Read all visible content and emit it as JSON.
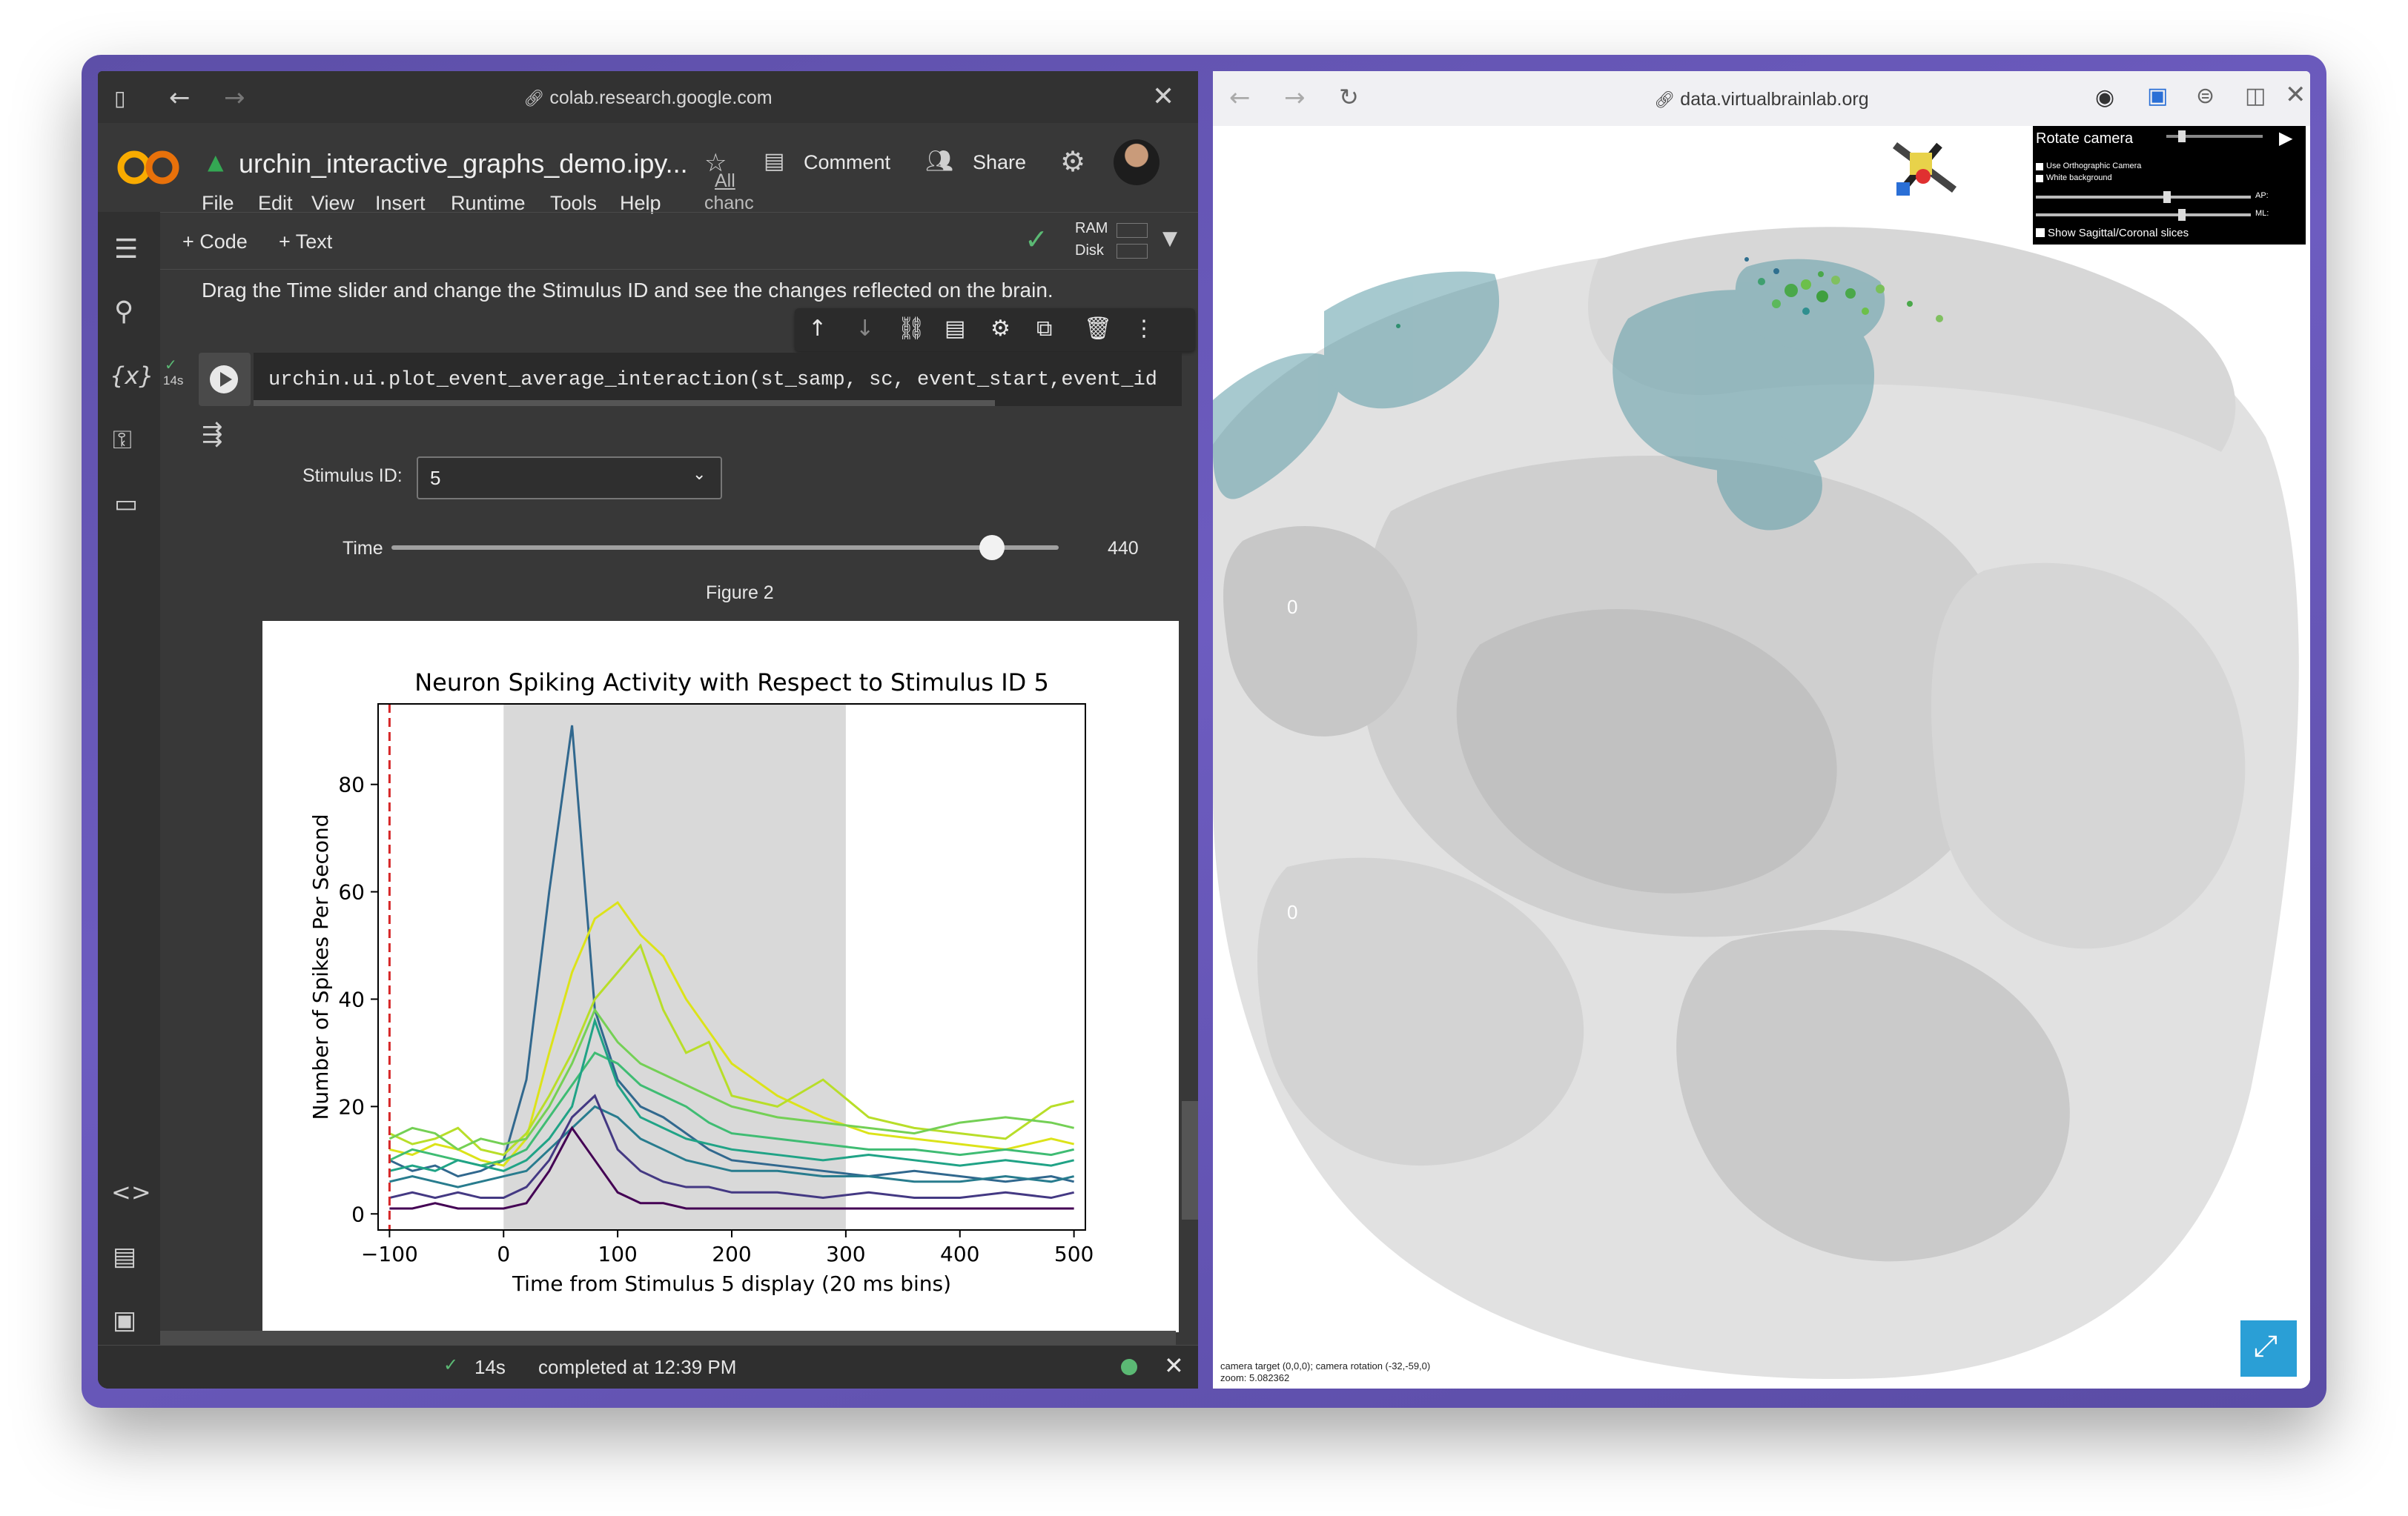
{
  "left_browser": {
    "url": "colab.research.google.com",
    "notebook": {
      "title": "urchin_interactive_graphs_demo.ipy...",
      "all_changes": "All",
      "all_changes2": "chanc",
      "menu": [
        "File",
        "Edit",
        "View",
        "Insert",
        "Runtime",
        "Tools",
        "Help"
      ],
      "comment": "Comment",
      "share": "Share",
      "add_code": "+ Code",
      "add_text": "+ Text",
      "ram": "RAM",
      "disk": "Disk"
    },
    "description": "Drag the Time slider and change the Stimulus ID and see the changes reflected on the brain.",
    "cell": {
      "exec_time": "14s",
      "code": "urchin.ui.plot_event_average_interaction(st_samp, sc, event_start,event_id"
    },
    "widgets": {
      "stimulus_label": "Stimulus ID:",
      "stimulus_value": "5",
      "time_label": "Time",
      "time_value": "440",
      "time_fraction": 0.9,
      "figure_label": "Figure 2"
    },
    "status": {
      "time": "14s",
      "text": "completed at 12:39 PM"
    }
  },
  "chart_data": {
    "type": "line",
    "title": "Neuron Spiking Activity with Respect to Stimulus ID 5",
    "xlabel": "Time from Stimulus 5 display (20 ms bins)",
    "ylabel": "Number of Spikes Per Second",
    "xlim": [
      -110,
      510
    ],
    "ylim": [
      -3,
      95
    ],
    "xticks": [
      -100,
      0,
      100,
      200,
      300,
      400,
      500
    ],
    "yticks": [
      0,
      20,
      40,
      60,
      80
    ],
    "stimulus_line_x": -100,
    "shaded_region": [
      0,
      300
    ],
    "colormap": "viridis",
    "series": [
      {
        "color": "#31688e",
        "x": [
          -100,
          -80,
          -60,
          -40,
          -20,
          0,
          20,
          40,
          60,
          80,
          100,
          120,
          140,
          160,
          180,
          200,
          240,
          280,
          320,
          360,
          400,
          440,
          480,
          500
        ],
        "values": [
          10,
          8,
          9,
          7,
          8,
          10,
          25,
          60,
          91,
          38,
          25,
          20,
          18,
          15,
          12,
          10,
          9,
          8,
          7,
          8,
          7,
          6,
          7,
          6
        ]
      },
      {
        "color": "#dce319",
        "x": [
          -100,
          -80,
          -60,
          -40,
          -20,
          0,
          20,
          40,
          60,
          80,
          100,
          120,
          140,
          160,
          180,
          200,
          240,
          280,
          320,
          360,
          400,
          440,
          480,
          500
        ],
        "values": [
          12,
          11,
          13,
          12,
          10,
          9,
          14,
          30,
          45,
          55,
          58,
          52,
          48,
          40,
          34,
          28,
          22,
          18,
          15,
          14,
          13,
          12,
          14,
          13
        ]
      },
      {
        "color": "#b8de29",
        "x": [
          -100,
          -80,
          -60,
          -40,
          -20,
          0,
          20,
          40,
          60,
          80,
          100,
          120,
          140,
          160,
          180,
          200,
          240,
          280,
          320,
          360,
          400,
          440,
          480,
          500
        ],
        "values": [
          15,
          13,
          14,
          16,
          12,
          11,
          15,
          22,
          30,
          40,
          45,
          50,
          38,
          30,
          32,
          22,
          20,
          25,
          18,
          16,
          15,
          14,
          20,
          21
        ]
      },
      {
        "color": "#74d055",
        "x": [
          -100,
          -80,
          -60,
          -40,
          -20,
          0,
          20,
          40,
          60,
          80,
          100,
          120,
          140,
          160,
          180,
          200,
          240,
          280,
          320,
          360,
          400,
          440,
          480,
          500
        ],
        "values": [
          14,
          16,
          15,
          12,
          14,
          13,
          14,
          20,
          28,
          38,
          32,
          28,
          26,
          24,
          22,
          20,
          18,
          17,
          16,
          15,
          17,
          18,
          17,
          16
        ]
      },
      {
        "color": "#3fbc73",
        "x": [
          -100,
          -80,
          -60,
          -40,
          -20,
          0,
          20,
          40,
          60,
          80,
          100,
          120,
          140,
          160,
          180,
          200,
          240,
          280,
          320,
          360,
          400,
          440,
          480,
          500
        ],
        "values": [
          10,
          12,
          11,
          10,
          9,
          10,
          12,
          18,
          24,
          30,
          28,
          24,
          22,
          20,
          17,
          15,
          14,
          13,
          12,
          12,
          11,
          12,
          11,
          12
        ]
      },
      {
        "color": "#20a386",
        "x": [
          -100,
          -80,
          -60,
          -40,
          -20,
          0,
          20,
          40,
          60,
          80,
          100,
          120,
          140,
          160,
          180,
          200,
          240,
          280,
          320,
          360,
          400,
          440,
          480,
          500
        ],
        "values": [
          8,
          9,
          8,
          10,
          9,
          8,
          10,
          14,
          20,
          36,
          24,
          18,
          16,
          14,
          13,
          12,
          11,
          10,
          11,
          10,
          9,
          10,
          9,
          10
        ]
      },
      {
        "color": "#287c8e",
        "x": [
          -100,
          -80,
          -60,
          -40,
          -20,
          0,
          20,
          40,
          60,
          80,
          100,
          120,
          140,
          160,
          180,
          200,
          240,
          280,
          320,
          360,
          400,
          440,
          480,
          500
        ],
        "values": [
          6,
          7,
          6,
          5,
          6,
          7,
          8,
          12,
          16,
          20,
          18,
          14,
          12,
          10,
          9,
          8,
          8,
          7,
          7,
          6,
          6,
          7,
          6,
          7
        ]
      },
      {
        "color": "#443983",
        "x": [
          -100,
          -80,
          -60,
          -40,
          -20,
          0,
          20,
          40,
          60,
          80,
          100,
          120,
          140,
          160,
          180,
          200,
          240,
          280,
          320,
          360,
          400,
          440,
          480,
          500
        ],
        "values": [
          3,
          4,
          3,
          4,
          3,
          3,
          5,
          10,
          18,
          22,
          12,
          8,
          6,
          5,
          5,
          4,
          4,
          3,
          4,
          3,
          3,
          4,
          3,
          4
        ]
      },
      {
        "color": "#440154",
        "x": [
          -100,
          -80,
          -60,
          -40,
          -20,
          0,
          20,
          40,
          60,
          80,
          100,
          120,
          140,
          160,
          180,
          200,
          240,
          280,
          320,
          360,
          400,
          440,
          480,
          500
        ],
        "values": [
          1,
          1,
          2,
          1,
          1,
          1,
          2,
          8,
          16,
          10,
          4,
          2,
          2,
          1,
          1,
          1,
          1,
          1,
          1,
          1,
          1,
          1,
          1,
          1
        ]
      }
    ]
  },
  "right_browser": {
    "url": "data.virtualbrainlab.org",
    "controls": {
      "rotate": "Rotate camera",
      "ortho": "Use Orthographic Camera",
      "white_bg": "White background",
      "ap": "AP:",
      "ml": "ML:",
      "slices": "Show Sagittal/Coronal slices"
    },
    "axis_zero_top": "0",
    "axis_zero_mid": "0",
    "camera_info_1": "camera target (0,0,0); camera rotation (-32,-59,0)",
    "camera_info_2": "zoom: 5.082362"
  }
}
